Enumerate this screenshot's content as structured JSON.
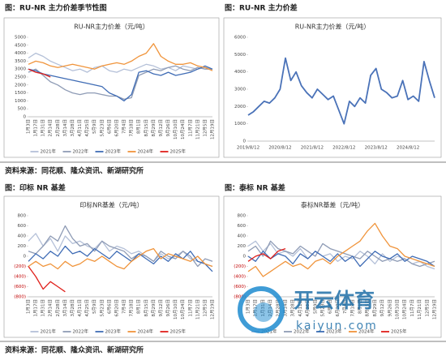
{
  "headers": [
    "图：RU-NR 主力价差季节性图",
    "图：RU-NR 主力价差",
    "图：印标 NR 基差",
    "图：泰标 NR 基差"
  ],
  "sources": [
    "资料来源：同花顺、隆众资讯、新湖研究所",
    "资料来源：同花顺、隆众资讯、新湖研究所"
  ],
  "watermark": {
    "brand": "开云体育",
    "site": "kaiyun.com"
  },
  "chart_data": [
    {
      "type": "line",
      "title": "RU-NR主力价差（元/吨）",
      "categories": [
        "1月3日",
        "1月17日",
        "1月31日",
        "2月14日",
        "2月28日",
        "3月14日",
        "3月28日",
        "4月11日",
        "4月25日",
        "5月9日",
        "5月23日",
        "6月6日",
        "6月20日",
        "7月4日",
        "7月18日",
        "8月1日",
        "8月15日",
        "8月29日",
        "9月12日",
        "9月26日",
        "10月10日",
        "10月24日",
        "11月7日",
        "11月21日",
        "12月5日",
        "12月19日"
      ],
      "ylim": [
        0,
        5000
      ],
      "yticks": [
        0,
        500,
        1000,
        1500,
        2000,
        2500,
        3000,
        3500,
        4000,
        4500,
        5000
      ],
      "grid": false,
      "series": [
        {
          "name": "2021年",
          "color": "#b4c0d8",
          "values": [
            3700,
            4000,
            3800,
            3500,
            3300,
            3100,
            2900,
            3000,
            2800,
            3100,
            3200,
            2900,
            2800,
            3000,
            2900,
            3100,
            3300,
            3200,
            3000,
            3100,
            2900,
            3200,
            3100,
            3000,
            3100,
            3000
          ]
        },
        {
          "name": "2022年",
          "color": "#8e9bb5",
          "values": [
            2800,
            3000,
            2600,
            2200,
            2000,
            1700,
            1500,
            1400,
            1500,
            1500,
            1400,
            1300,
            1300,
            1100,
            1200,
            2600,
            2800,
            3000,
            2900,
            3100,
            3200,
            3000,
            2900,
            3100,
            3000,
            3000
          ]
        },
        {
          "name": "2023年",
          "color": "#3f6cb5",
          "values": [
            3000,
            2900,
            2700,
            2600,
            2500,
            2400,
            2300,
            2200,
            2100,
            2000,
            1900,
            1500,
            1300,
            1000,
            1400,
            2800,
            2900,
            2700,
            2600,
            2800,
            2600,
            2700,
            2800,
            3000,
            3200,
            3000
          ]
        },
        {
          "name": "2024年",
          "color": "#f0943b",
          "values": [
            3300,
            3500,
            3400,
            3200,
            3100,
            3200,
            3300,
            3200,
            3100,
            3000,
            3200,
            3300,
            3400,
            3300,
            3500,
            3800,
            4000,
            4600,
            3800,
            3500,
            3300,
            3300,
            3400,
            3200,
            3100,
            2900
          ]
        },
        {
          "name": "2025年",
          "color": "#e0201b",
          "values": [
            3000,
            2800,
            2700,
            2500,
            null,
            null,
            null,
            null,
            null,
            null,
            null,
            null,
            null,
            null,
            null,
            null,
            null,
            null,
            null,
            null,
            null,
            null,
            null,
            null,
            null,
            null
          ]
        }
      ]
    },
    {
      "type": "line",
      "title": "RU-NR主力价差（元/吨）",
      "categories": [
        "2019/8/12",
        null,
        null,
        null,
        null,
        null,
        "2020/8/12",
        null,
        null,
        null,
        null,
        null,
        "2021/8/12",
        null,
        null,
        null,
        null,
        null,
        "2022/8/12",
        null,
        null,
        null,
        null,
        null,
        "2023/8/12",
        null,
        null,
        null,
        null,
        null,
        "2024/8/12",
        null,
        null,
        null,
        null,
        null
      ],
      "ylim": [
        0,
        6000
      ],
      "yticks": [
        0,
        1000,
        2000,
        3000,
        4000,
        5000,
        6000
      ],
      "grid": false,
      "series": [
        {
          "color": "#4a72b8",
          "values": [
            1500,
            1700,
            2000,
            2300,
            2200,
            2500,
            3000,
            4800,
            3500,
            4000,
            3200,
            2800,
            2500,
            3000,
            2700,
            2400,
            2600,
            1800,
            1000,
            2300,
            2000,
            2500,
            2200,
            3800,
            4200,
            3000,
            2800,
            2500,
            2600,
            3500,
            2400,
            2600,
            2300,
            4600,
            3500,
            2500
          ]
        }
      ]
    },
    {
      "type": "line",
      "title": "印标NR基差（元/吨）",
      "categories": [
        "1月3日",
        "1月17日",
        "1月31日",
        "2月14日",
        "2月28日",
        "3月14日",
        "3月28日",
        "4月11日",
        "4月25日",
        "5月9日",
        "5月23日",
        "6月6日",
        "6月20日",
        "7月4日",
        "7月18日",
        "8月1日",
        "8月15日",
        "8月29日",
        "9月12日",
        "9月26日",
        "10月10日",
        "10月24日",
        "11月7日",
        "11月21日",
        "12月5日",
        "12月19日"
      ],
      "ylim": [
        -800,
        800
      ],
      "yticks": [
        {
          "value": -800,
          "label": "(800)"
        },
        {
          "value": -600,
          "label": "(600)"
        },
        {
          "value": -400,
          "label": "(400)"
        },
        {
          "value": -200,
          "label": "(200)"
        },
        0,
        200,
        400,
        600,
        800
      ],
      "grid": false,
      "negative_tick_color": "#c00000",
      "series": [
        {
          "name": "2021年",
          "color": "#b4c0d8",
          "values": [
            300,
            450,
            200,
            350,
            100,
            400,
            250,
            300,
            200,
            150,
            300,
            100,
            200,
            150,
            50,
            100,
            0,
            -100,
            50,
            -50,
            0,
            100,
            -50,
            -100,
            -150,
            -200
          ]
        },
        {
          "name": "2022年",
          "color": "#8e9bb5",
          "values": [
            100,
            50,
            200,
            400,
            300,
            600,
            350,
            200,
            250,
            100,
            300,
            200,
            150,
            100,
            -50,
            50,
            0,
            -100,
            100,
            0,
            -50,
            100,
            0,
            -200,
            -50,
            -100
          ]
        },
        {
          "name": "2023年",
          "color": "#3f6cb5",
          "values": [
            -100,
            50,
            -50,
            100,
            0,
            200,
            50,
            100,
            0,
            150,
            50,
            -50,
            100,
            0,
            -100,
            50,
            -50,
            -150,
            0,
            -100,
            50,
            -50,
            100,
            -100,
            -150,
            -300
          ]
        },
        {
          "name": "2024年",
          "color": "#f0943b",
          "values": [
            -200,
            -100,
            -200,
            -150,
            -250,
            -100,
            -200,
            -150,
            -50,
            -100,
            0,
            -100,
            -200,
            -250,
            -100,
            0,
            100,
            150,
            -50,
            50,
            0,
            -50,
            -100,
            0,
            -150,
            -200
          ]
        },
        {
          "name": "2025年",
          "color": "#e0201b",
          "values": [
            -200,
            -400,
            -650,
            -500,
            -600,
            -700,
            null,
            null,
            null,
            null,
            null,
            null,
            null,
            null,
            null,
            null,
            null,
            null,
            null,
            null,
            null,
            null,
            null,
            null,
            null,
            null
          ]
        }
      ]
    },
    {
      "type": "line",
      "title": "泰标NR基差（元/吨）",
      "categories": [
        "1月3日",
        "1月17日",
        "1月31日",
        "2月14日",
        "2月28日",
        "3月14日",
        "3月28日",
        "4月11日",
        "4月25日",
        "5月9日",
        "5月23日",
        "6月6日",
        "6月20日",
        "7月4日",
        "7月18日",
        "8月1日",
        "8月15日",
        "8月29日",
        "9月12日",
        "9月26日",
        "10月10日",
        "10月24日",
        "11月7日",
        "11月21日",
        "12月5日",
        "12月19日"
      ],
      "ylim": [
        -800,
        800
      ],
      "yticks": [
        {
          "value": -800,
          "label": "(800)"
        },
        {
          "value": -600,
          "label": "(600)"
        },
        {
          "value": -400,
          "label": "(400)"
        },
        {
          "value": -200,
          "label": "(200)"
        },
        0,
        200,
        400,
        600,
        800
      ],
      "grid": false,
      "negative_tick_color": "#c00000",
      "series": [
        {
          "name": "2021年",
          "color": "#b4c0d8",
          "values": [
            200,
            300,
            100,
            250,
            50,
            100,
            0,
            150,
            -50,
            100,
            0,
            50,
            -100,
            0,
            -50,
            100,
            0,
            -150,
            50,
            -100,
            0,
            -50,
            -150,
            -100,
            -200,
            -250
          ]
        },
        {
          "name": "2022年",
          "color": "#8e9bb5",
          "values": [
            100,
            200,
            0,
            300,
            150,
            100,
            50,
            200,
            100,
            0,
            250,
            150,
            100,
            50,
            0,
            -50,
            100,
            0,
            -100,
            -50,
            -100,
            -50,
            -150,
            -200,
            -150,
            -100
          ]
        },
        {
          "name": "2023年",
          "color": "#3f6cb5",
          "values": [
            0,
            -100,
            100,
            -50,
            50,
            0,
            -150,
            50,
            -50,
            100,
            0,
            -100,
            50,
            -100,
            0,
            -200,
            -50,
            100,
            0,
            -50,
            50,
            -100,
            0,
            -50,
            -100,
            -200
          ]
        },
        {
          "name": "2024年",
          "color": "#f0943b",
          "values": [
            -300,
            -200,
            -400,
            -300,
            -200,
            -100,
            -200,
            -150,
            -250,
            -100,
            -50,
            -150,
            0,
            100,
            200,
            300,
            500,
            650,
            400,
            200,
            150,
            0,
            -50,
            -100,
            -150,
            -200
          ]
        },
        {
          "name": "2025年",
          "color": "#e0201b",
          "values": [
            -100,
            0,
            50,
            -50,
            100,
            150,
            null,
            null,
            null,
            null,
            null,
            null,
            null,
            null,
            null,
            null,
            null,
            null,
            null,
            null,
            null,
            null,
            null,
            null,
            null,
            null
          ]
        }
      ]
    }
  ]
}
